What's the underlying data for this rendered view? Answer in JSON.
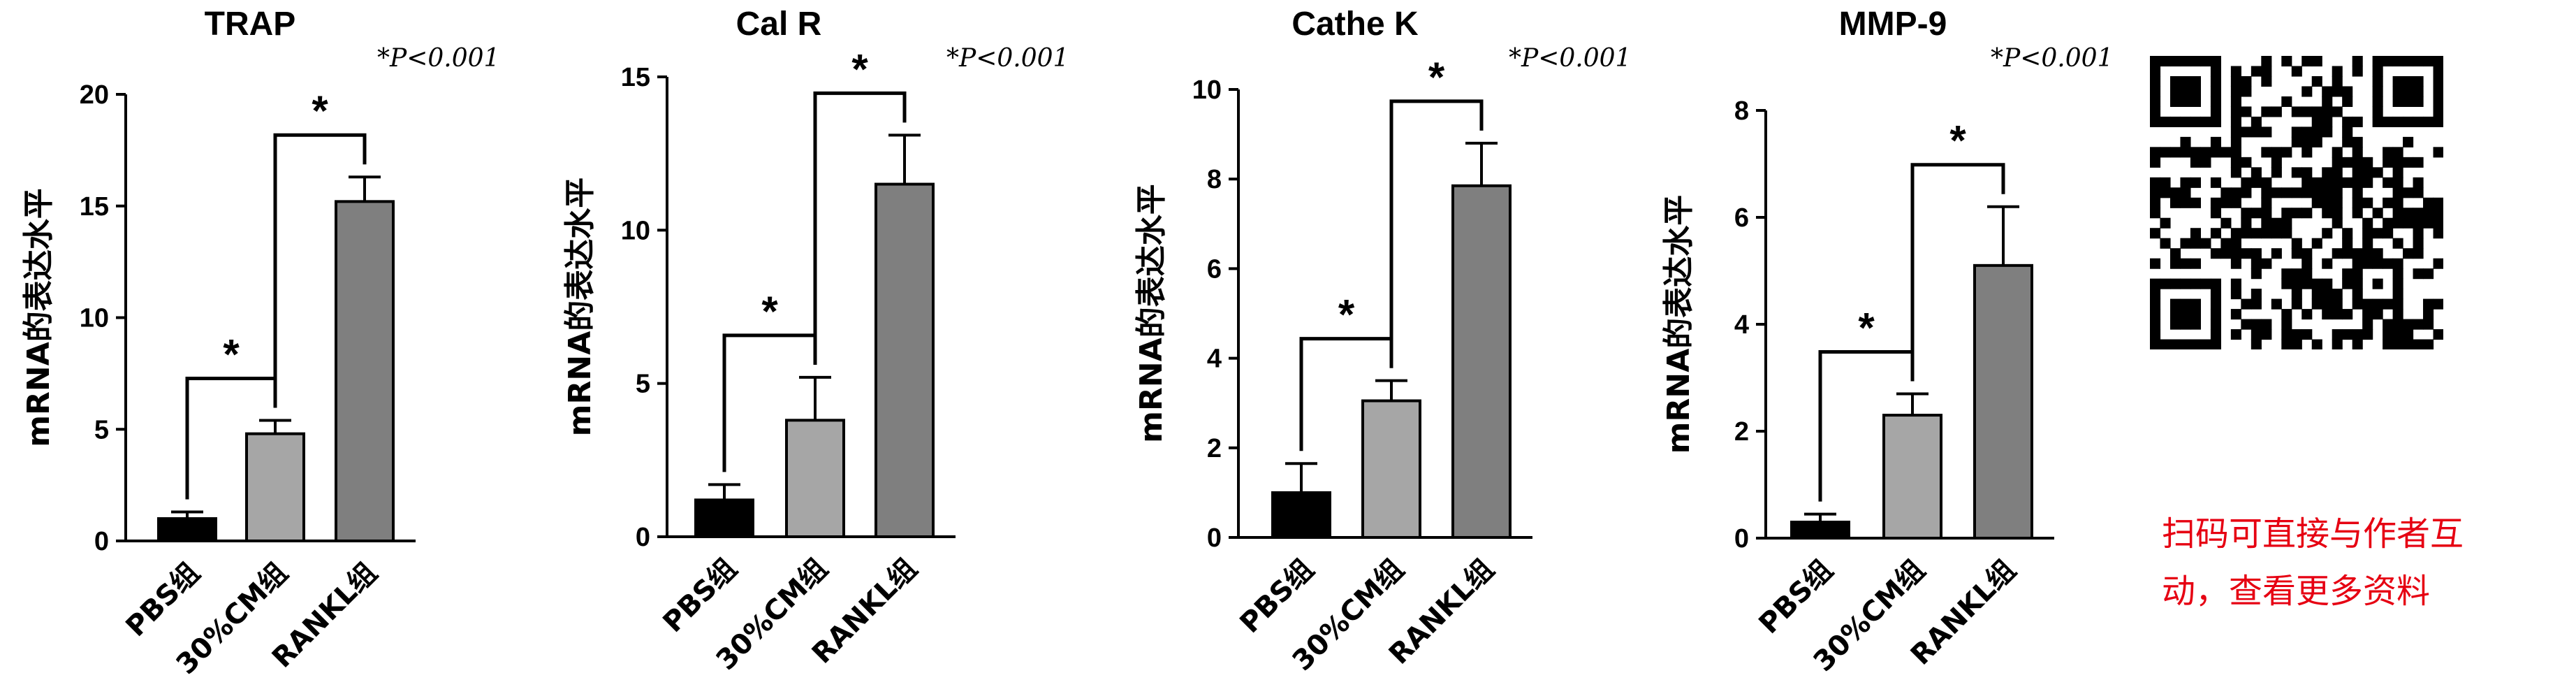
{
  "chart_data": [
    {
      "type": "bar",
      "title": "TRAP",
      "ylabel": "mRNA的表达水平",
      "xlabel": "",
      "significance_note": "*P<0.001",
      "categories": [
        "PBS组",
        "30%CM组",
        "RANKL组"
      ],
      "values": [
        1.0,
        4.8,
        15.2
      ],
      "errors": [
        0.3,
        0.6,
        1.1
      ],
      "bar_colors": [
        "#000000",
        "#a6a6a6",
        "#7f7f7f"
      ],
      "ylim": [
        0,
        20
      ],
      "yticks": [
        0,
        5,
        10,
        15,
        20
      ],
      "grid": false,
      "significance": [
        {
          "from": 0,
          "to": 1,
          "label": "*"
        },
        {
          "from": 1,
          "to": 2,
          "label": "*"
        }
      ]
    },
    {
      "type": "bar",
      "title": "Cal R",
      "ylabel": "mRNA的表达水平",
      "xlabel": "",
      "significance_note": "*P<0.001",
      "categories": [
        "PBS组",
        "30%CM组",
        "RANKL组"
      ],
      "values": [
        1.2,
        3.8,
        11.5
      ],
      "errors": [
        0.5,
        1.4,
        1.6
      ],
      "bar_colors": [
        "#000000",
        "#a6a6a6",
        "#7f7f7f"
      ],
      "ylim": [
        0,
        15
      ],
      "yticks": [
        0,
        5,
        10,
        15
      ],
      "grid": false,
      "significance": [
        {
          "from": 0,
          "to": 1,
          "label": "*"
        },
        {
          "from": 1,
          "to": 2,
          "label": "*"
        }
      ]
    },
    {
      "type": "bar",
      "title": "Cathe K",
      "ylabel": "mRNA的表达水平",
      "xlabel": "",
      "significance_note": "*P<0.001",
      "categories": [
        "PBS组",
        "30%CM组",
        "RANKL组"
      ],
      "values": [
        1.0,
        3.05,
        7.85
      ],
      "errors": [
        0.65,
        0.45,
        0.95
      ],
      "bar_colors": [
        "#000000",
        "#a6a6a6",
        "#7f7f7f"
      ],
      "ylim": [
        0,
        10
      ],
      "yticks": [
        0,
        2,
        4,
        6,
        8,
        10
      ],
      "grid": false,
      "significance": [
        {
          "from": 0,
          "to": 1,
          "label": "*"
        },
        {
          "from": 1,
          "to": 2,
          "label": "*"
        }
      ]
    },
    {
      "type": "bar",
      "title": "MMP-9",
      "ylabel": "mRNA的表达水平",
      "xlabel": "",
      "significance_note": "*P<0.001",
      "categories": [
        "PBS组",
        "30%CM组",
        "RANKL组"
      ],
      "values": [
        0.3,
        2.3,
        5.1
      ],
      "errors": [
        0.15,
        0.4,
        1.1
      ],
      "bar_colors": [
        "#000000",
        "#a6a6a6",
        "#7f7f7f"
      ],
      "ylim": [
        0,
        8
      ],
      "yticks": [
        0,
        2,
        4,
        6,
        8
      ],
      "grid": false,
      "significance": [
        {
          "from": 0,
          "to": 1,
          "label": "*"
        },
        {
          "from": 1,
          "to": 2,
          "label": "*"
        }
      ]
    }
  ],
  "qr_caption": {
    "line1": "扫码可直接与作者互",
    "line2": "动，查看更多资料",
    "color": "#e60012"
  }
}
